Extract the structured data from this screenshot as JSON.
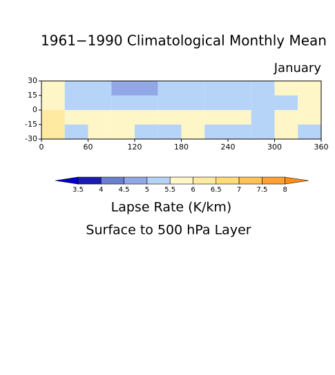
{
  "chart_data": {
    "type": "contour",
    "title": "1961−1990 Climatological Monthly Mean",
    "subtitle": "January",
    "xlim": [
      0,
      360
    ],
    "ylim": [
      -30,
      30
    ],
    "xticks": [
      0,
      60,
      120,
      180,
      240,
      300,
      360
    ],
    "yticks": [
      30,
      15,
      0,
      -15,
      -30
    ],
    "lon_edges": [
      0,
      30,
      60,
      90,
      120,
      150,
      180,
      210,
      240,
      270,
      300,
      330,
      360
    ],
    "lat_edges": [
      30,
      15,
      0,
      -15,
      -30
    ],
    "values": [
      [
        5.8,
        5.3,
        5.2,
        4.8,
        4.7,
        5.2,
        5.3,
        5.2,
        5.3,
        5.2,
        5.7,
        5.6
      ],
      [
        5.8,
        5.4,
        5.3,
        5.4,
        5.3,
        5.4,
        5.3,
        5.3,
        5.4,
        5.0,
        5.3,
        5.7
      ],
      [
        6.2,
        5.7,
        5.7,
        5.8,
        5.7,
        5.7,
        5.8,
        5.8,
        5.7,
        5.4,
        5.7,
        5.8
      ],
      [
        6.0,
        5.4,
        5.7,
        5.6,
        5.4,
        5.3,
        5.6,
        5.4,
        5.3,
        5.0,
        5.8,
        5.2
      ]
    ],
    "levels": [
      3.5,
      4,
      4.5,
      5,
      5.5,
      6,
      6.5,
      7,
      7.5,
      8
    ],
    "colors": [
      "#0000c8",
      "#1a1ab4",
      "#6a7fd0",
      "#92a8e6",
      "#b6d4f8",
      "#fff6c8",
      "#ffeaa2",
      "#ffdc78",
      "#ffc256",
      "#ffa032",
      "#ff8c14"
    ],
    "colorbar_label": "Lapse Rate (K/km)",
    "colorbar_sublabel": "Surface to 500 hPa Layer"
  }
}
